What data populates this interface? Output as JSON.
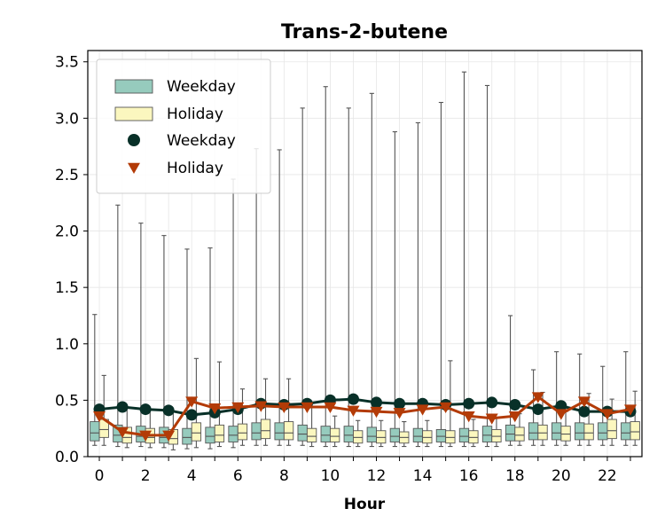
{
  "chart_data": {
    "type": "box",
    "title": "Trans-2-butene",
    "xlabel": "Hour",
    "ylabel": "",
    "x": [
      0,
      1,
      2,
      3,
      4,
      5,
      6,
      7,
      8,
      9,
      10,
      11,
      12,
      13,
      14,
      15,
      16,
      17,
      18,
      19,
      20,
      21,
      22,
      23
    ],
    "x_ticks": [
      "0",
      "2",
      "4",
      "6",
      "8",
      "10",
      "12",
      "14",
      "16",
      "18",
      "20",
      "22"
    ],
    "y_ticks": [
      "0.0",
      "0.5",
      "1.0",
      "1.5",
      "2.0",
      "2.5",
      "3.0",
      "3.5"
    ],
    "ylim": [
      0,
      3.6
    ],
    "xlim": [
      -0.5,
      23.5
    ],
    "grid": true,
    "legend_position": "upper-left",
    "legend": [
      {
        "label": "Weekday",
        "kind": "box"
      },
      {
        "label": "Holiday",
        "kind": "box"
      },
      {
        "label": "Weekday",
        "kind": "circle-line"
      },
      {
        "label": "Holiday",
        "kind": "triangle-line"
      }
    ],
    "colors": {
      "weekday_box": "#96cbbd",
      "holiday_box": "#fbf7bf",
      "weekday_line": "#083028",
      "holiday_line": "#b33b07",
      "whisker": "#555555"
    },
    "box_series": [
      {
        "name": "Weekday",
        "boxes": [
          {
            "whislo": 0.1,
            "q1": 0.14,
            "med": 0.21,
            "q3": 0.31,
            "whishi": 1.26
          },
          {
            "whislo": 0.09,
            "q1": 0.13,
            "med": 0.19,
            "q3": 0.28,
            "whishi": 2.23
          },
          {
            "whislo": 0.09,
            "q1": 0.13,
            "med": 0.18,
            "q3": 0.27,
            "whishi": 2.07
          },
          {
            "whislo": 0.08,
            "q1": 0.12,
            "med": 0.17,
            "q3": 0.26,
            "whishi": 1.96
          },
          {
            "whislo": 0.07,
            "q1": 0.11,
            "med": 0.17,
            "q3": 0.25,
            "whishi": 1.84
          },
          {
            "whislo": 0.07,
            "q1": 0.12,
            "med": 0.18,
            "q3": 0.26,
            "whishi": 1.85
          },
          {
            "whislo": 0.08,
            "q1": 0.13,
            "med": 0.19,
            "q3": 0.27,
            "whishi": 2.46
          },
          {
            "whislo": 0.1,
            "q1": 0.15,
            "med": 0.21,
            "q3": 0.3,
            "whishi": 2.73
          },
          {
            "whislo": 0.1,
            "q1": 0.15,
            "med": 0.21,
            "q3": 0.3,
            "whishi": 2.72
          },
          {
            "whislo": 0.1,
            "q1": 0.14,
            "med": 0.2,
            "q3": 0.28,
            "whishi": 3.09
          },
          {
            "whislo": 0.09,
            "q1": 0.13,
            "med": 0.19,
            "q3": 0.27,
            "whishi": 3.28
          },
          {
            "whislo": 0.09,
            "q1": 0.13,
            "med": 0.19,
            "q3": 0.27,
            "whishi": 3.09
          },
          {
            "whislo": 0.09,
            "q1": 0.13,
            "med": 0.18,
            "q3": 0.26,
            "whishi": 3.22
          },
          {
            "whislo": 0.09,
            "q1": 0.13,
            "med": 0.18,
            "q3": 0.25,
            "whishi": 2.88
          },
          {
            "whislo": 0.09,
            "q1": 0.13,
            "med": 0.18,
            "q3": 0.25,
            "whishi": 2.96
          },
          {
            "whislo": 0.09,
            "q1": 0.13,
            "med": 0.18,
            "q3": 0.24,
            "whishi": 3.14
          },
          {
            "whislo": 0.09,
            "q1": 0.13,
            "med": 0.18,
            "q3": 0.25,
            "whishi": 3.41
          },
          {
            "whislo": 0.09,
            "q1": 0.13,
            "med": 0.19,
            "q3": 0.27,
            "whishi": 3.29
          },
          {
            "whislo": 0.1,
            "q1": 0.14,
            "med": 0.2,
            "q3": 0.28,
            "whishi": 1.25
          },
          {
            "whislo": 0.1,
            "q1": 0.15,
            "med": 0.21,
            "q3": 0.3,
            "whishi": 0.77
          },
          {
            "whislo": 0.1,
            "q1": 0.15,
            "med": 0.21,
            "q3": 0.3,
            "whishi": 0.93
          },
          {
            "whislo": 0.1,
            "q1": 0.15,
            "med": 0.21,
            "q3": 0.3,
            "whishi": 0.91
          },
          {
            "whislo": 0.1,
            "q1": 0.15,
            "med": 0.21,
            "q3": 0.3,
            "whishi": 0.8
          },
          {
            "whislo": 0.1,
            "q1": 0.15,
            "med": 0.21,
            "q3": 0.3,
            "whishi": 0.93
          }
        ]
      },
      {
        "name": "Holiday",
        "boxes": [
          {
            "whislo": 0.1,
            "q1": 0.17,
            "med": 0.24,
            "q3": 0.33,
            "whishi": 0.72
          },
          {
            "whislo": 0.08,
            "q1": 0.12,
            "med": 0.17,
            "q3": 0.26,
            "whishi": 0.44
          },
          {
            "whislo": 0.08,
            "q1": 0.12,
            "med": 0.17,
            "q3": 0.25,
            "whishi": 0.41
          },
          {
            "whislo": 0.06,
            "q1": 0.11,
            "med": 0.16,
            "q3": 0.24,
            "whishi": 0.4
          },
          {
            "whislo": 0.08,
            "q1": 0.14,
            "med": 0.21,
            "q3": 0.3,
            "whishi": 0.87
          },
          {
            "whislo": 0.09,
            "q1": 0.13,
            "med": 0.19,
            "q3": 0.28,
            "whishi": 0.84
          },
          {
            "whislo": 0.1,
            "q1": 0.15,
            "med": 0.21,
            "q3": 0.29,
            "whishi": 0.6
          },
          {
            "whislo": 0.1,
            "q1": 0.16,
            "med": 0.23,
            "q3": 0.33,
            "whishi": 0.69
          },
          {
            "whislo": 0.1,
            "q1": 0.15,
            "med": 0.21,
            "q3": 0.31,
            "whishi": 0.69
          },
          {
            "whislo": 0.09,
            "q1": 0.13,
            "med": 0.18,
            "q3": 0.25,
            "whishi": 0.48
          },
          {
            "whislo": 0.09,
            "q1": 0.13,
            "med": 0.18,
            "q3": 0.25,
            "whishi": 0.36
          },
          {
            "whislo": 0.09,
            "q1": 0.12,
            "med": 0.17,
            "q3": 0.23,
            "whishi": 0.32
          },
          {
            "whislo": 0.09,
            "q1": 0.12,
            "med": 0.17,
            "q3": 0.23,
            "whishi": 0.32
          },
          {
            "whislo": 0.09,
            "q1": 0.12,
            "med": 0.17,
            "q3": 0.22,
            "whishi": 0.31
          },
          {
            "whislo": 0.09,
            "q1": 0.12,
            "med": 0.17,
            "q3": 0.23,
            "whishi": 0.32
          },
          {
            "whislo": 0.09,
            "q1": 0.12,
            "med": 0.17,
            "q3": 0.23,
            "whishi": 0.85
          },
          {
            "whislo": 0.09,
            "q1": 0.12,
            "med": 0.17,
            "q3": 0.23,
            "whishi": 0.33
          },
          {
            "whislo": 0.09,
            "q1": 0.13,
            "med": 0.18,
            "q3": 0.24,
            "whishi": 0.34
          },
          {
            "whislo": 0.1,
            "q1": 0.14,
            "med": 0.19,
            "q3": 0.26,
            "whishi": 0.38
          },
          {
            "whislo": 0.1,
            "q1": 0.15,
            "med": 0.21,
            "q3": 0.28,
            "whishi": 0.57
          },
          {
            "whislo": 0.1,
            "q1": 0.14,
            "med": 0.2,
            "q3": 0.27,
            "whishi": 0.4
          },
          {
            "whislo": 0.1,
            "q1": 0.15,
            "med": 0.21,
            "q3": 0.29,
            "whishi": 0.56
          },
          {
            "whislo": 0.1,
            "q1": 0.16,
            "med": 0.23,
            "q3": 0.33,
            "whishi": 0.51
          },
          {
            "whislo": 0.1,
            "q1": 0.15,
            "med": 0.22,
            "q3": 0.31,
            "whishi": 0.58
          }
        ]
      }
    ],
    "series": [
      {
        "name": "Weekday",
        "marker": "circle",
        "values": [
          0.42,
          0.44,
          0.42,
          0.41,
          0.37,
          0.39,
          0.42,
          0.47,
          0.46,
          0.47,
          0.5,
          0.51,
          0.48,
          0.47,
          0.47,
          0.46,
          0.47,
          0.48,
          0.46,
          0.42,
          0.45,
          0.4,
          0.4,
          0.4
        ]
      },
      {
        "name": "Holiday",
        "marker": "triangle-down",
        "values": [
          0.36,
          0.22,
          0.19,
          0.19,
          0.49,
          0.43,
          0.44,
          0.45,
          0.44,
          0.44,
          0.44,
          0.41,
          0.4,
          0.39,
          0.42,
          0.44,
          0.36,
          0.34,
          0.36,
          0.53,
          0.38,
          0.49,
          0.38,
          0.42
        ]
      }
    ]
  }
}
